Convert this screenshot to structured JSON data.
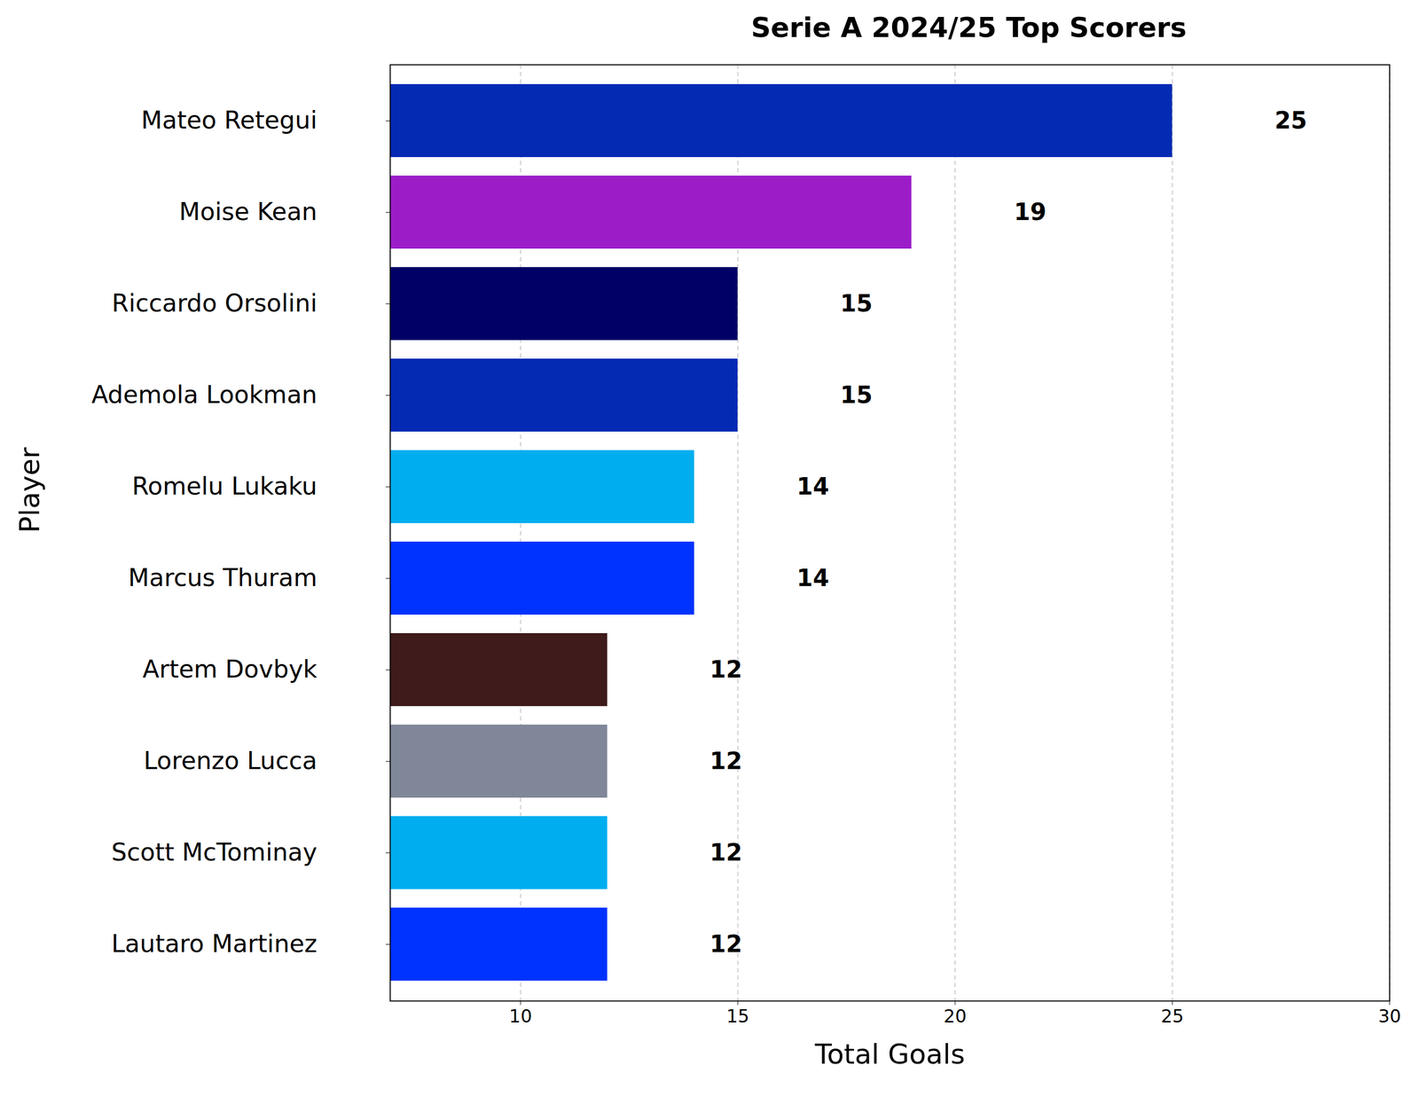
{
  "chart_data": {
    "type": "bar",
    "orientation": "horizontal",
    "title": "Serie A 2024/25 Top Scorers",
    "x_label": "Total Goals",
    "y_label": "Player",
    "categories": [
      "Mateo Retegui",
      "Moise Kean",
      "Riccardo Orsolini",
      "Ademola Lookman",
      "Romelu Lukaku",
      "Marcus Thuram",
      "Artem Dovbyk",
      "Lorenzo Lucca",
      "Scott McTominay",
      "Lautaro Martinez"
    ],
    "values": [
      25,
      19,
      15,
      15,
      14,
      14,
      12,
      12,
      12,
      12
    ],
    "colors": [
      "#042ab4",
      "#9b1dc8",
      "#000066",
      "#042ab4",
      "#00aeef",
      "#0033ff",
      "#3f1b1b",
      "#7f8799",
      "#00aeef",
      "#0033ff"
    ],
    "xlim": [
      7,
      30
    ],
    "xticks": [
      10,
      15,
      20,
      25,
      30
    ],
    "grid": true,
    "data_labels": true
  }
}
